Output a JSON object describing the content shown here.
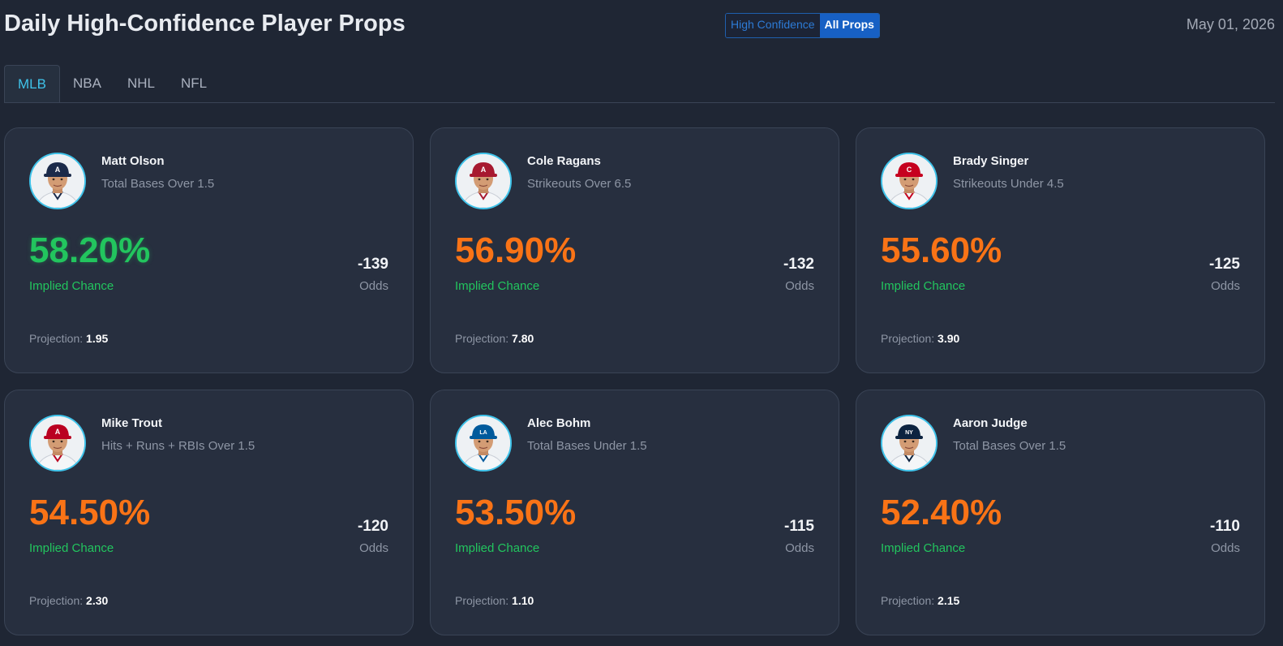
{
  "header": {
    "title": "Daily High-Confidence Player Props",
    "toggle": {
      "high_confidence": "High Confidence",
      "all_props": "All Props",
      "selected": "All Props"
    },
    "date": "May 01, 2026"
  },
  "tabs": [
    {
      "label": "MLB",
      "active": true
    },
    {
      "label": "NBA",
      "active": false
    },
    {
      "label": "NHL",
      "active": false
    },
    {
      "label": "NFL",
      "active": false
    }
  ],
  "labels": {
    "implied": "Implied Chance",
    "odds": "Odds",
    "projection": "Projection:"
  },
  "colors": {
    "high": "#22c55e",
    "medium": "#f97316",
    "accent": "#3fc3ea"
  },
  "cards": [
    {
      "name": "Matt Olson",
      "prop": "Total Bases Over 1.5",
      "pct": "58.20%",
      "tier": "high",
      "odds": "-139",
      "projection": "1.95",
      "cap": "#1b2a4a",
      "logo": "A"
    },
    {
      "name": "Cole Ragans",
      "prop": "Strikeouts Over 6.5",
      "pct": "56.90%",
      "tier": "medium",
      "odds": "-132",
      "projection": "7.80",
      "cap": "#a71930",
      "logo": "A"
    },
    {
      "name": "Brady Singer",
      "prop": "Strikeouts Under 4.5",
      "pct": "55.60%",
      "tier": "medium",
      "odds": "-125",
      "projection": "3.90",
      "cap": "#c6011f",
      "logo": "C"
    },
    {
      "name": "Mike Trout",
      "prop": "Hits + Runs + RBIs Over 1.5",
      "pct": "54.50%",
      "tier": "medium",
      "odds": "-120",
      "projection": "2.30",
      "cap": "#ba0021",
      "logo": "A"
    },
    {
      "name": "Alec Bohm",
      "prop": "Total Bases Under 1.5",
      "pct": "53.50%",
      "tier": "medium",
      "odds": "-115",
      "projection": "1.10",
      "cap": "#005a9c",
      "logo": "LA"
    },
    {
      "name": "Aaron Judge",
      "prop": "Total Bases Over 1.5",
      "pct": "52.40%",
      "tier": "medium",
      "odds": "-110",
      "projection": "2.15",
      "cap": "#0c2340",
      "logo": "NY"
    }
  ]
}
